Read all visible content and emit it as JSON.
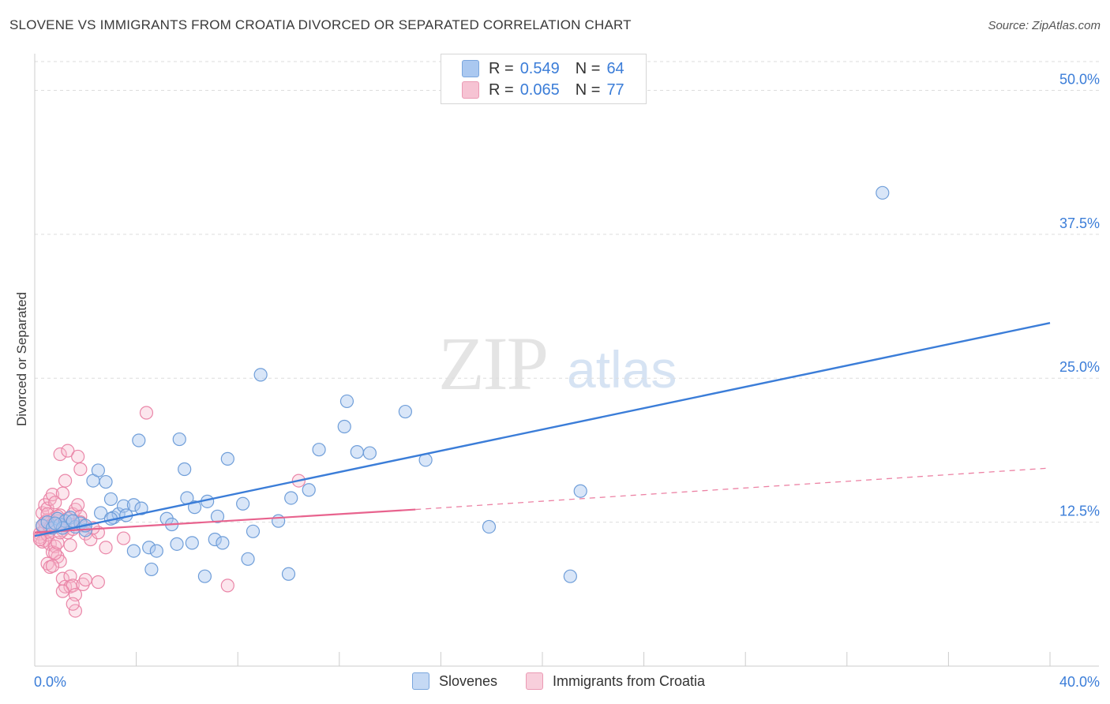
{
  "title": "SLOVENE VS IMMIGRANTS FROM CROATIA DIVORCED OR SEPARATED CORRELATION CHART",
  "source": "Source: ZipAtlas.com",
  "watermark": {
    "part1": "ZIP",
    "part2": "atlas"
  },
  "colors": {
    "blue": "#3b7dd8",
    "blue_fill": "#aac8f0",
    "pink": "#e8638e",
    "pink_fill": "#f6b6ca",
    "grid": "#dddddd",
    "tick_text": "#3b7dd8"
  },
  "legend_top": [
    {
      "r_label": "R =",
      "r_value": "0.549",
      "n_label": "N =",
      "n_value": "64"
    },
    {
      "r_label": "R =",
      "r_value": "0.065",
      "n_label": "N =",
      "n_value": "77"
    }
  ],
  "legend_bottom": [
    "Slovenes",
    "Immigrants from Croatia"
  ],
  "chart_data": {
    "type": "scatter",
    "title": "SLOVENE VS IMMIGRANTS FROM CROATIA DIVORCED OR SEPARATED CORRELATION CHART",
    "xlabel": "",
    "ylabel": "Divorced or Separated",
    "xlim": [
      0,
      40
    ],
    "ylim": [
      0,
      52.5
    ],
    "x_tick_labels": [
      "0.0%",
      "40.0%"
    ],
    "y_ticks": [
      12.5,
      25.0,
      37.5,
      50.0
    ],
    "y_tick_labels": [
      "12.5%",
      "25.0%",
      "37.5%",
      "50.0%"
    ],
    "grid": "horizontal dashed",
    "legend_placement": "top-center and bottom",
    "series": [
      {
        "name": "Slovenes",
        "color": "#3b7dd8",
        "trend": {
          "x": [
            0.0,
            40.0
          ],
          "y": [
            11.3,
            29.8
          ],
          "style": "solid"
        },
        "points": [
          [
            0.3,
            12.2
          ],
          [
            0.5,
            12.5
          ],
          [
            0.7,
            12.0
          ],
          [
            0.9,
            12.8
          ],
          [
            1.0,
            12.3
          ],
          [
            1.2,
            12.6
          ],
          [
            1.4,
            12.9
          ],
          [
            1.6,
            12.1
          ],
          [
            1.8,
            12.4
          ],
          [
            2.0,
            11.8
          ],
          [
            2.3,
            16.1
          ],
          [
            2.5,
            17.0
          ],
          [
            2.8,
            16.0
          ],
          [
            2.6,
            13.3
          ],
          [
            3.0,
            14.5
          ],
          [
            3.1,
            12.9
          ],
          [
            3.3,
            13.2
          ],
          [
            3.5,
            13.9
          ],
          [
            3.6,
            13.1
          ],
          [
            3.9,
            14.0
          ],
          [
            4.2,
            13.7
          ],
          [
            3.9,
            10.0
          ],
          [
            4.5,
            10.3
          ],
          [
            4.8,
            10.0
          ],
          [
            4.6,
            8.4
          ],
          [
            4.1,
            19.6
          ],
          [
            5.2,
            12.8
          ],
          [
            5.4,
            12.3
          ],
          [
            5.6,
            10.6
          ],
          [
            5.7,
            19.7
          ],
          [
            5.9,
            17.1
          ],
          [
            6.0,
            14.6
          ],
          [
            6.2,
            10.7
          ],
          [
            6.3,
            13.8
          ],
          [
            6.7,
            7.8
          ],
          [
            6.8,
            14.3
          ],
          [
            7.2,
            13.0
          ],
          [
            7.1,
            11.0
          ],
          [
            7.4,
            10.7
          ],
          [
            7.6,
            18.0
          ],
          [
            8.2,
            14.1
          ],
          [
            8.4,
            9.3
          ],
          [
            8.6,
            11.7
          ],
          [
            8.9,
            25.3
          ],
          [
            9.6,
            12.6
          ],
          [
            10.0,
            8.0
          ],
          [
            10.1,
            14.6
          ],
          [
            10.8,
            15.3
          ],
          [
            11.2,
            18.8
          ],
          [
            12.2,
            20.8
          ],
          [
            12.3,
            23.0
          ],
          [
            12.7,
            18.6
          ],
          [
            13.2,
            18.5
          ],
          [
            14.6,
            22.1
          ],
          [
            15.4,
            17.9
          ],
          [
            17.9,
            12.1
          ],
          [
            21.1,
            7.8
          ],
          [
            21.5,
            15.2
          ],
          [
            33.4,
            41.1
          ],
          [
            1.1,
            12.0
          ],
          [
            2.0,
            12.2
          ],
          [
            3.0,
            12.8
          ],
          [
            0.8,
            12.4
          ],
          [
            1.5,
            12.6
          ]
        ]
      },
      {
        "name": "Immigrants from Croatia",
        "color": "#e8638e",
        "trend": {
          "x": [
            0.0,
            15.0
          ],
          "y": [
            11.6,
            13.6
          ],
          "style": "solid"
        },
        "trend_extension": {
          "x": [
            15.0,
            40.0
          ],
          "y": [
            13.6,
            17.2
          ],
          "style": "dashed"
        },
        "points": [
          [
            0.2,
            11.5
          ],
          [
            0.3,
            12.1
          ],
          [
            0.4,
            10.9
          ],
          [
            0.5,
            12.7
          ],
          [
            0.6,
            11.8
          ],
          [
            0.3,
            13.3
          ],
          [
            0.4,
            14.0
          ],
          [
            0.5,
            13.7
          ],
          [
            0.6,
            14.5
          ],
          [
            0.7,
            12.4
          ],
          [
            0.8,
            12.9
          ],
          [
            0.9,
            12.6
          ],
          [
            1.0,
            13.1
          ],
          [
            0.2,
            11.2
          ],
          [
            0.3,
            10.8
          ],
          [
            0.4,
            11.9
          ],
          [
            0.5,
            11.4
          ],
          [
            0.6,
            10.6
          ],
          [
            0.7,
            9.9
          ],
          [
            0.8,
            10.4
          ],
          [
            0.9,
            9.5
          ],
          [
            1.0,
            9.1
          ],
          [
            0.5,
            8.9
          ],
          [
            0.6,
            8.6
          ],
          [
            0.7,
            8.7
          ],
          [
            0.8,
            9.8
          ],
          [
            0.9,
            10.7
          ],
          [
            1.1,
            11.8
          ],
          [
            1.2,
            12.2
          ],
          [
            1.3,
            11.6
          ],
          [
            1.4,
            10.5
          ],
          [
            1.5,
            13.2
          ],
          [
            1.6,
            13.6
          ],
          [
            1.7,
            14.0
          ],
          [
            1.8,
            13.0
          ],
          [
            1.9,
            12.2
          ],
          [
            2.0,
            11.5
          ],
          [
            2.2,
            11.0
          ],
          [
            2.5,
            11.6
          ],
          [
            2.8,
            10.3
          ],
          [
            3.5,
            11.1
          ],
          [
            0.7,
            14.9
          ],
          [
            0.8,
            14.2
          ],
          [
            1.1,
            15.0
          ],
          [
            1.2,
            16.1
          ],
          [
            1.0,
            18.4
          ],
          [
            1.3,
            18.7
          ],
          [
            1.7,
            18.2
          ],
          [
            1.8,
            17.1
          ],
          [
            1.1,
            7.6
          ],
          [
            1.2,
            6.9
          ],
          [
            1.4,
            7.8
          ],
          [
            1.4,
            6.9
          ],
          [
            1.5,
            7.0
          ],
          [
            1.6,
            6.2
          ],
          [
            1.6,
            4.8
          ],
          [
            1.5,
            5.4
          ],
          [
            1.9,
            7.1
          ],
          [
            2.0,
            7.5
          ],
          [
            2.5,
            7.3
          ],
          [
            1.1,
            6.5
          ],
          [
            0.4,
            12.5
          ],
          [
            0.3,
            12.2
          ],
          [
            0.2,
            11.0
          ],
          [
            0.5,
            13.2
          ],
          [
            0.9,
            13.0
          ],
          [
            0.6,
            12.0
          ],
          [
            1.0,
            11.6
          ],
          [
            1.3,
            12.8
          ],
          [
            1.5,
            11.9
          ],
          [
            1.8,
            12.5
          ],
          [
            2.3,
            12.0
          ],
          [
            4.4,
            22.0
          ],
          [
            10.4,
            16.1
          ],
          [
            7.6,
            7.0
          ],
          [
            0.8,
            12.1
          ],
          [
            1.4,
            12.3
          ]
        ]
      }
    ]
  }
}
